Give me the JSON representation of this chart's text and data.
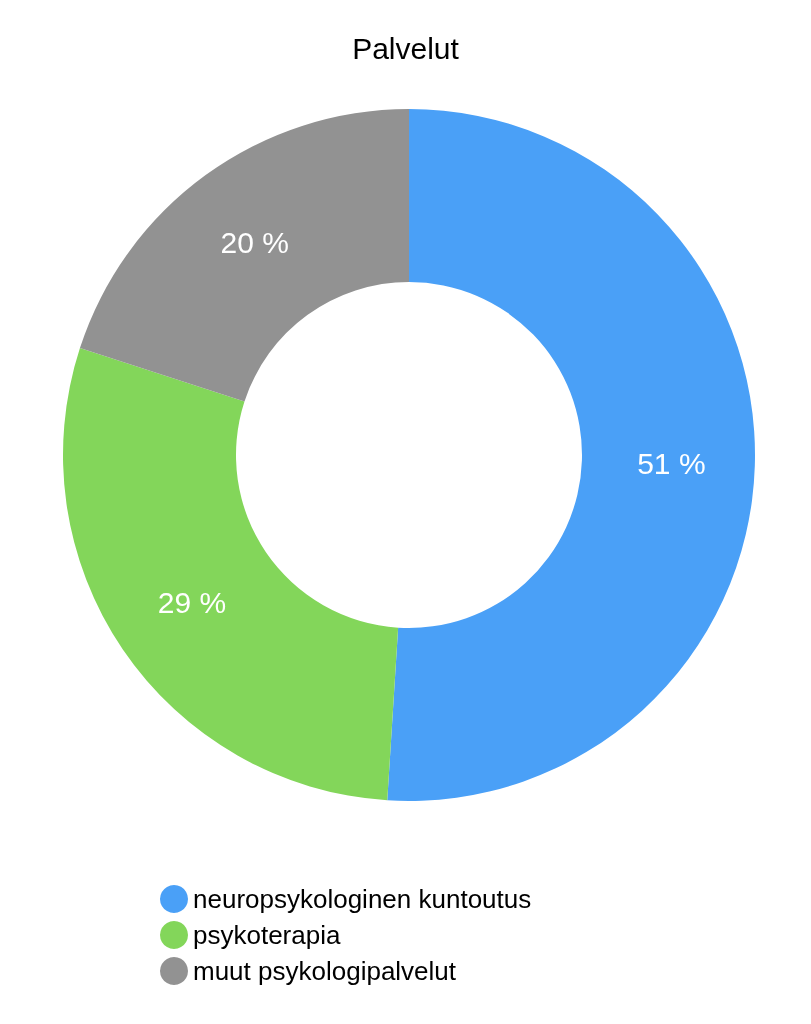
{
  "chart_data": {
    "type": "donut",
    "title": "Palvelut",
    "categories": [
      "neuropsykologinen kuntoutus",
      "psykoterapia",
      "muut psykologipalvelut"
    ],
    "values": [
      51,
      29,
      20
    ],
    "value_labels": [
      "51 %",
      "29 %",
      "20 %"
    ],
    "colors": [
      "#4aa0f7",
      "#83d65a",
      "#929292"
    ],
    "legend": "bottom"
  }
}
